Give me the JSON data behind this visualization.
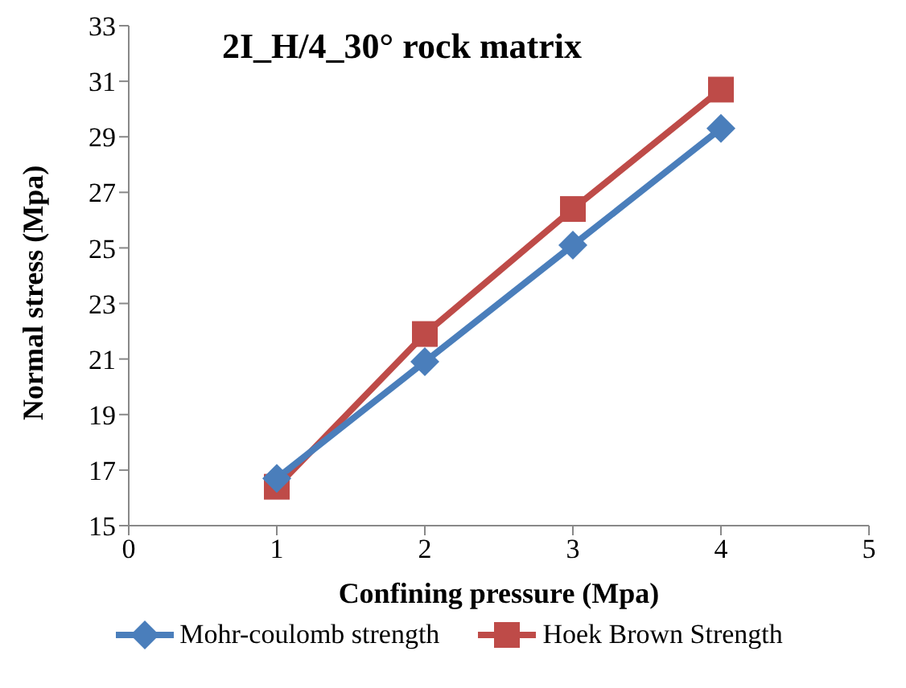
{
  "chart_data": {
    "type": "line",
    "title": "2I_H/4_30° rock matrix",
    "xlabel": "Confining pressure (Mpa)",
    "ylabel": "Normal stress (Mpa)",
    "x": [
      1,
      2,
      3,
      4
    ],
    "series": [
      {
        "name": "Mohr-coulomb strength",
        "color": "#4a7ebb",
        "marker": "diamond",
        "values": [
          16.7,
          20.9,
          25.1,
          29.3
        ]
      },
      {
        "name": "Hoek Brown Strength",
        "color": "#be4b48",
        "marker": "square",
        "values": [
          16.4,
          21.9,
          26.4,
          30.7
        ]
      }
    ],
    "xlim": [
      0,
      5
    ],
    "xticks": [
      0,
      1,
      2,
      3,
      4,
      5
    ],
    "ylim": [
      15,
      33
    ],
    "yticks": [
      15,
      17,
      19,
      21,
      23,
      25,
      27,
      29,
      31,
      33
    ],
    "grid": false,
    "legend": "bottom"
  }
}
